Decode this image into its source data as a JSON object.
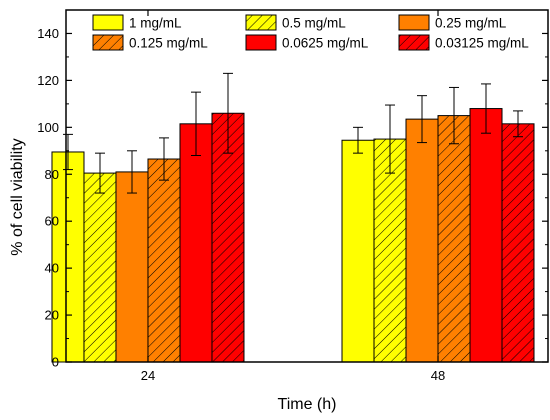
{
  "chart_data": {
    "type": "bar",
    "title": "",
    "xlabel": "Time (h)",
    "ylabel": "% of cell viability",
    "categories": [
      "24",
      "48"
    ],
    "ylim": [
      0,
      150
    ],
    "yticks": [
      "0",
      "20",
      "40",
      "60",
      "80",
      "100",
      "120",
      "140"
    ],
    "grid": false,
    "legend_position": "top",
    "series": [
      {
        "name": "1 mg/mL",
        "color": "#ffff00",
        "hatched": false,
        "values": [
          89.5,
          94.5
        ],
        "errors": [
          7.5,
          5.5
        ]
      },
      {
        "name": "0.5 mg/mL",
        "color": "#ffff00",
        "hatched": true,
        "values": [
          80.5,
          95
        ],
        "errors": [
          8.5,
          14.5
        ]
      },
      {
        "name": "0.25 mg/mL",
        "color": "#ff8000",
        "hatched": false,
        "values": [
          81,
          103.5
        ],
        "errors": [
          9,
          10
        ]
      },
      {
        "name": "0.125 mg/mL",
        "color": "#ff8000",
        "hatched": true,
        "values": [
          86.5,
          105
        ],
        "errors": [
          9,
          12
        ]
      },
      {
        "name": "0.0625 mg/mL",
        "color": "#ff0000",
        "hatched": false,
        "values": [
          101.5,
          108
        ],
        "errors": [
          13.5,
          10.5
        ]
      },
      {
        "name": "0.03125 mg/mL",
        "color": "#ff0000",
        "hatched": true,
        "values": [
          106,
          101.5
        ],
        "errors": [
          17,
          5.5
        ]
      }
    ]
  }
}
